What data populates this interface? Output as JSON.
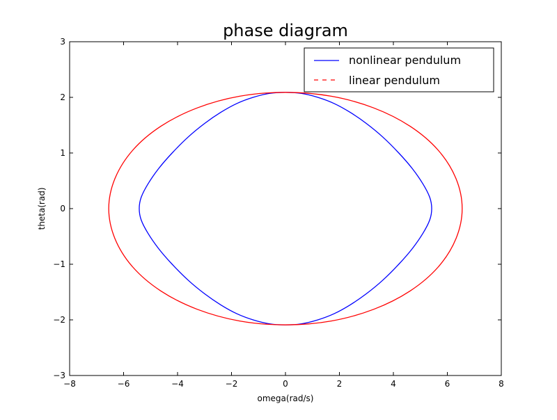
{
  "chart_data": {
    "type": "line",
    "title": "phase diagram",
    "xlabel": "omega(rad/s)",
    "ylabel": "theta(rad)",
    "xlim": [
      -8,
      8
    ],
    "ylim": [
      -3,
      3
    ],
    "x_ticks": [
      -8,
      -6,
      -4,
      -2,
      0,
      2,
      4,
      6,
      8
    ],
    "y_ticks": [
      -3,
      -2,
      -1,
      0,
      1,
      2,
      3
    ],
    "x_tick_labels": [
      "−8",
      "−6",
      "−4",
      "−2",
      "0",
      "2",
      "4",
      "6",
      "8"
    ],
    "y_tick_labels": [
      "−3",
      "−2",
      "−1",
      "0",
      "1",
      "2",
      "3"
    ],
    "grid": false,
    "legend_position": "top-right",
    "series": [
      {
        "name": "nonlinear pendulum",
        "color": "#0000ff",
        "line_style": "solid",
        "points": [
          [
            0,
            2.09
          ],
          [
            -0.6,
            2.07
          ],
          [
            -1.2,
            2.0
          ],
          [
            -1.8,
            1.89
          ],
          [
            -2.4,
            1.73
          ],
          [
            -3.0,
            1.53
          ],
          [
            -3.6,
            1.29
          ],
          [
            -4.2,
            1.0
          ],
          [
            -4.7,
            0.72
          ],
          [
            -5.1,
            0.44
          ],
          [
            -5.35,
            0.2
          ],
          [
            -5.42,
            0.0
          ],
          [
            -5.35,
            -0.2
          ],
          [
            -5.1,
            -0.44
          ],
          [
            -4.7,
            -0.72
          ],
          [
            -4.2,
            -1.0
          ],
          [
            -3.6,
            -1.29
          ],
          [
            -3.0,
            -1.53
          ],
          [
            -2.4,
            -1.73
          ],
          [
            -1.8,
            -1.89
          ],
          [
            -1.2,
            -2.0
          ],
          [
            -0.6,
            -2.07
          ],
          [
            0,
            -2.09
          ],
          [
            0.6,
            -2.07
          ],
          [
            1.2,
            -2.0
          ],
          [
            1.8,
            -1.89
          ],
          [
            2.4,
            -1.73
          ],
          [
            3.0,
            -1.53
          ],
          [
            3.6,
            -1.29
          ],
          [
            4.2,
            -1.0
          ],
          [
            4.7,
            -0.72
          ],
          [
            5.1,
            -0.44
          ],
          [
            5.35,
            -0.2
          ],
          [
            5.42,
            0.0
          ],
          [
            5.35,
            0.2
          ],
          [
            5.1,
            0.44
          ],
          [
            4.7,
            0.72
          ],
          [
            4.2,
            1.0
          ],
          [
            3.6,
            1.29
          ],
          [
            3.0,
            1.53
          ],
          [
            2.4,
            1.73
          ],
          [
            1.8,
            1.89
          ],
          [
            1.2,
            2.0
          ],
          [
            0.6,
            2.07
          ],
          [
            0,
            2.09
          ]
        ]
      },
      {
        "name": "linear pendulum",
        "color": "#ff0000",
        "line_style": "dashed",
        "points": [
          [
            0,
            2.09
          ],
          [
            -1.7,
            2.02
          ],
          [
            -3.27,
            1.81
          ],
          [
            -4.62,
            1.48
          ],
          [
            -5.66,
            1.05
          ],
          [
            -6.32,
            0.54
          ],
          [
            -6.55,
            0.0
          ],
          [
            -6.32,
            -0.54
          ],
          [
            -5.66,
            -1.05
          ],
          [
            -4.62,
            -1.48
          ],
          [
            -3.27,
            -1.81
          ],
          [
            -1.7,
            -2.02
          ],
          [
            0,
            -2.09
          ],
          [
            1.7,
            -2.02
          ],
          [
            3.27,
            -1.81
          ],
          [
            4.62,
            -1.48
          ],
          [
            5.66,
            -1.05
          ],
          [
            6.32,
            -0.54
          ],
          [
            6.55,
            0.0
          ],
          [
            6.32,
            0.54
          ],
          [
            5.66,
            1.05
          ],
          [
            4.62,
            1.48
          ],
          [
            3.27,
            1.81
          ],
          [
            1.7,
            2.02
          ],
          [
            0,
            2.09
          ]
        ]
      }
    ]
  }
}
